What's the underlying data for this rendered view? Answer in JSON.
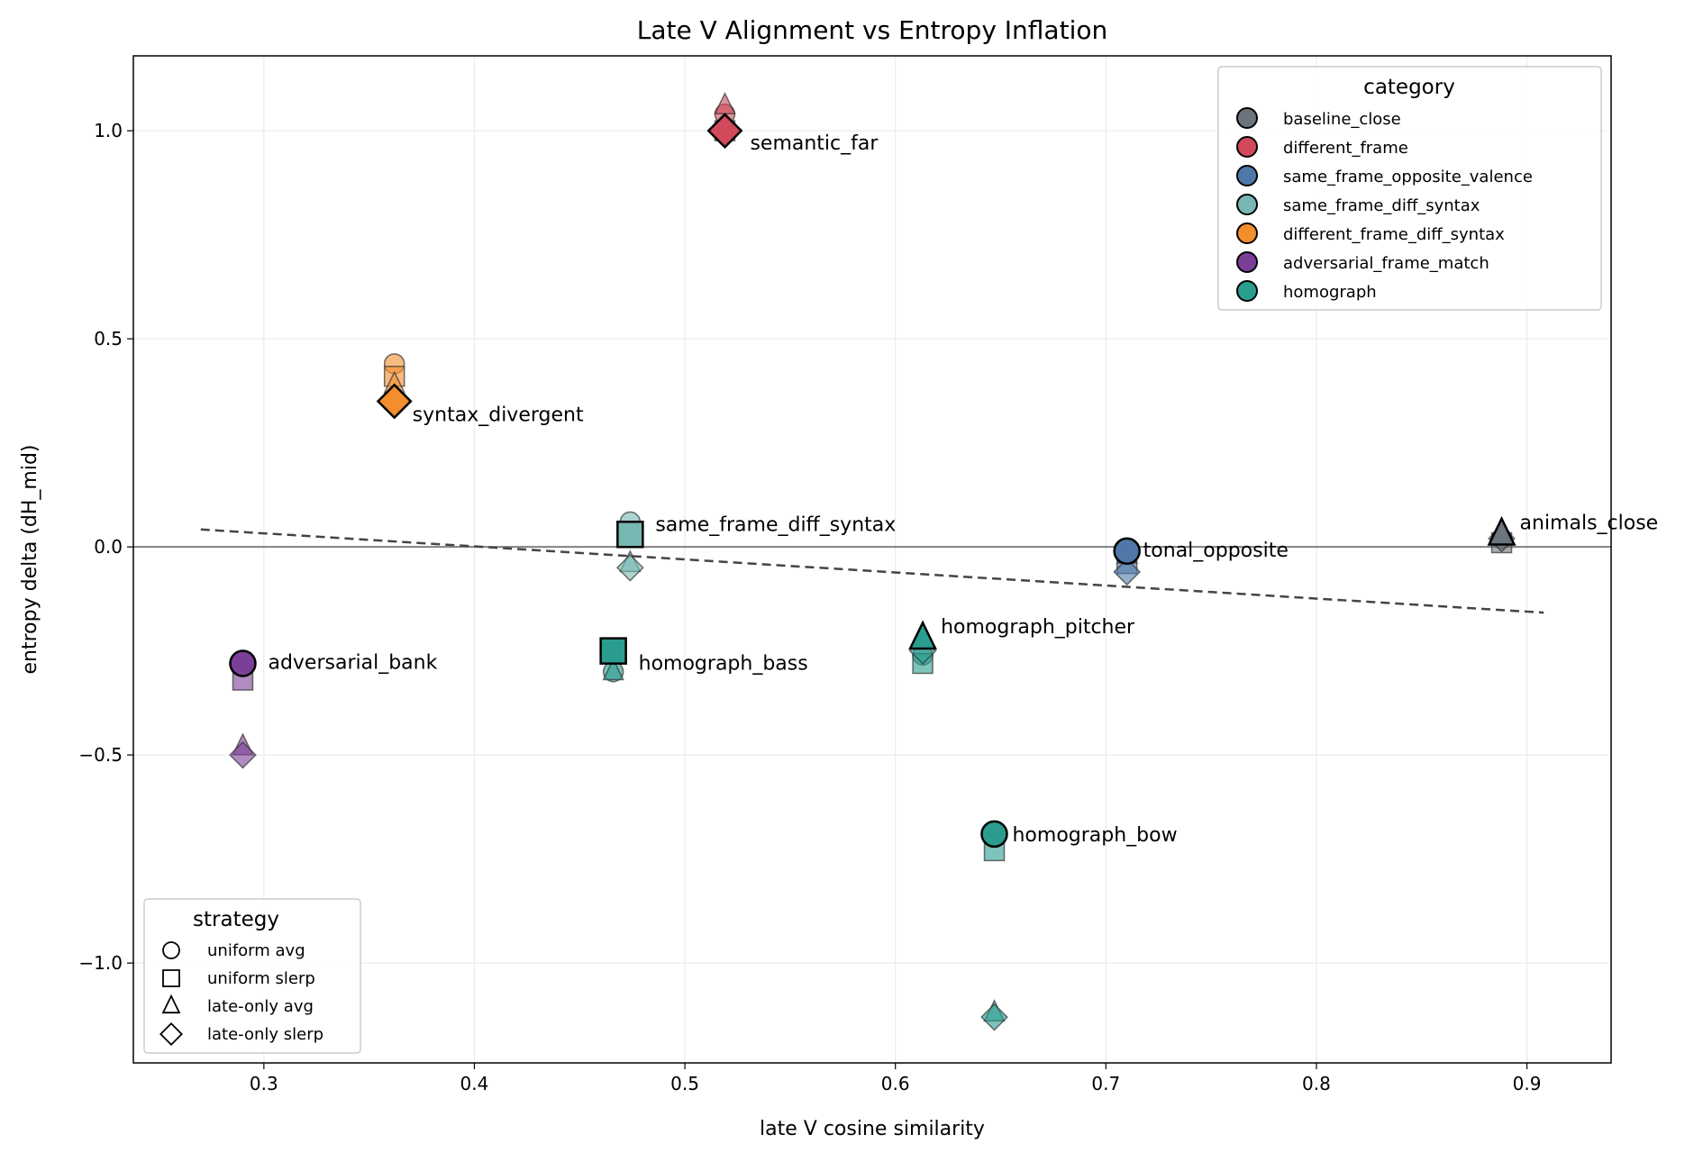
{
  "chart_data": {
    "type": "scatter",
    "title": "Late V Alignment vs Entropy Inflation",
    "xlabel": "late V cosine similarity",
    "ylabel": "entropy delta (dH_mid)",
    "xlim": [
      0.238,
      0.94
    ],
    "ylim": [
      -1.24,
      1.18
    ],
    "xticks": [
      "0.3",
      "0.4",
      "0.5",
      "0.6",
      "0.7",
      "0.8",
      "0.9"
    ],
    "yticks": [
      "−1.0",
      "−0.5",
      "0.0",
      "0.5",
      "1.0"
    ],
    "xtick_values": [
      0.3,
      0.4,
      0.5,
      0.6,
      0.7,
      0.8,
      0.9
    ],
    "ytick_values": [
      -1.0,
      -0.5,
      0.0,
      0.5,
      1.0
    ],
    "grid": true,
    "zero_line": 0.0,
    "trend_line": {
      "style": "dashed",
      "x": [
        0.27,
        0.908
      ],
      "y": [
        0.042,
        -0.158
      ]
    },
    "category_legend": {
      "title": "category",
      "placement": "top-right",
      "items": [
        {
          "name": "baseline_close",
          "color": "#6c757d"
        },
        {
          "name": "different_frame",
          "color": "#d1495b"
        },
        {
          "name": "same_frame_opposite_valence",
          "color": "#4f78a8"
        },
        {
          "name": "same_frame_diff_syntax",
          "color": "#76b7b2"
        },
        {
          "name": "different_frame_diff_syntax",
          "color": "#f28e2b"
        },
        {
          "name": "adversarial_frame_match",
          "color": "#7b3f98"
        },
        {
          "name": "homograph",
          "color": "#2a9d8f"
        }
      ]
    },
    "strategy_legend": {
      "title": "strategy",
      "placement": "bottom-left",
      "items": [
        {
          "name": "uniform avg",
          "marker": "circle"
        },
        {
          "name": "uniform slerp",
          "marker": "square"
        },
        {
          "name": "late-only avg",
          "marker": "triangle"
        },
        {
          "name": "late-only slerp",
          "marker": "diamond"
        }
      ]
    },
    "pairs": [
      {
        "label": "semantic_far",
        "category": 1,
        "x": 0.519,
        "y": [
          1.04,
          1.0,
          1.06,
          1.0
        ],
        "highlight": 3
      },
      {
        "label": "syntax_divergent",
        "category": 4,
        "x": 0.362,
        "y": [
          0.44,
          0.41,
          0.39,
          0.35
        ],
        "highlight": 3
      },
      {
        "label": "same_frame_diff_syntax",
        "category": 3,
        "x": 0.474,
        "y": [
          0.06,
          0.03,
          -0.04,
          -0.05
        ],
        "highlight": 1
      },
      {
        "label": "tonal_opposite",
        "category": 2,
        "x": 0.71,
        "y": [
          -0.01,
          -0.04,
          -0.02,
          -0.06
        ],
        "highlight": 0
      },
      {
        "label": "animals_close",
        "category": 0,
        "x": 0.888,
        "y": [
          0.02,
          0.01,
          0.03,
          0.02
        ],
        "highlight": 2
      },
      {
        "label": "adversarial_bank",
        "category": 5,
        "x": 0.29,
        "y": [
          -0.28,
          -0.32,
          -0.48,
          -0.5
        ],
        "highlight": 0
      },
      {
        "label": "homograph_bass",
        "category": 6,
        "x": 0.466,
        "y": [
          -0.3,
          -0.25,
          -0.3,
          -0.25
        ],
        "highlight": 1
      },
      {
        "label": "homograph_pitcher",
        "category": 6,
        "x": 0.613,
        "y": [
          -0.26,
          -0.28,
          -0.22,
          -0.25
        ],
        "highlight": 2
      },
      {
        "label": "homograph_bow",
        "category": 6,
        "x": 0.647,
        "y": [
          -0.69,
          -0.73,
          -1.12,
          -1.13
        ],
        "highlight": 0
      }
    ]
  }
}
